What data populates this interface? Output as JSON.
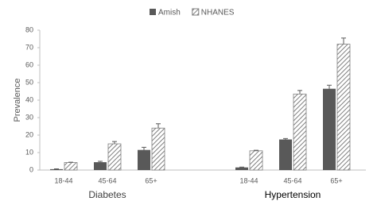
{
  "chart_data": {
    "type": "bar",
    "y_label": "Prevalence",
    "groups": [
      {
        "name": "Diabetes",
        "categories": [
          "18-44",
          "45-64",
          "65+"
        ]
      },
      {
        "name": "Hypertension",
        "categories": [
          "18-44",
          "45-64",
          "65+"
        ]
      }
    ],
    "series": [
      {
        "name": "Amish",
        "color": "#595959",
        "pattern": "solid",
        "values": [
          0.5,
          4.5,
          11.5,
          1.5,
          17.5,
          46.5
        ],
        "errors": [
          0.2,
          0.5,
          1.5,
          0.2,
          0.5,
          2
        ]
      },
      {
        "name": "NHANES",
        "color": "#7f7f7f",
        "pattern": "hatch",
        "values": [
          4.3,
          15,
          24,
          11,
          43.5,
          72
        ],
        "errors": [
          0.2,
          1.3,
          2.5,
          0.3,
          2,
          3.5
        ]
      }
    ],
    "ylim": [
      0,
      80
    ],
    "yticks": [
      0,
      10,
      20,
      30,
      40,
      50,
      60,
      70,
      80
    ],
    "legend": "top"
  }
}
